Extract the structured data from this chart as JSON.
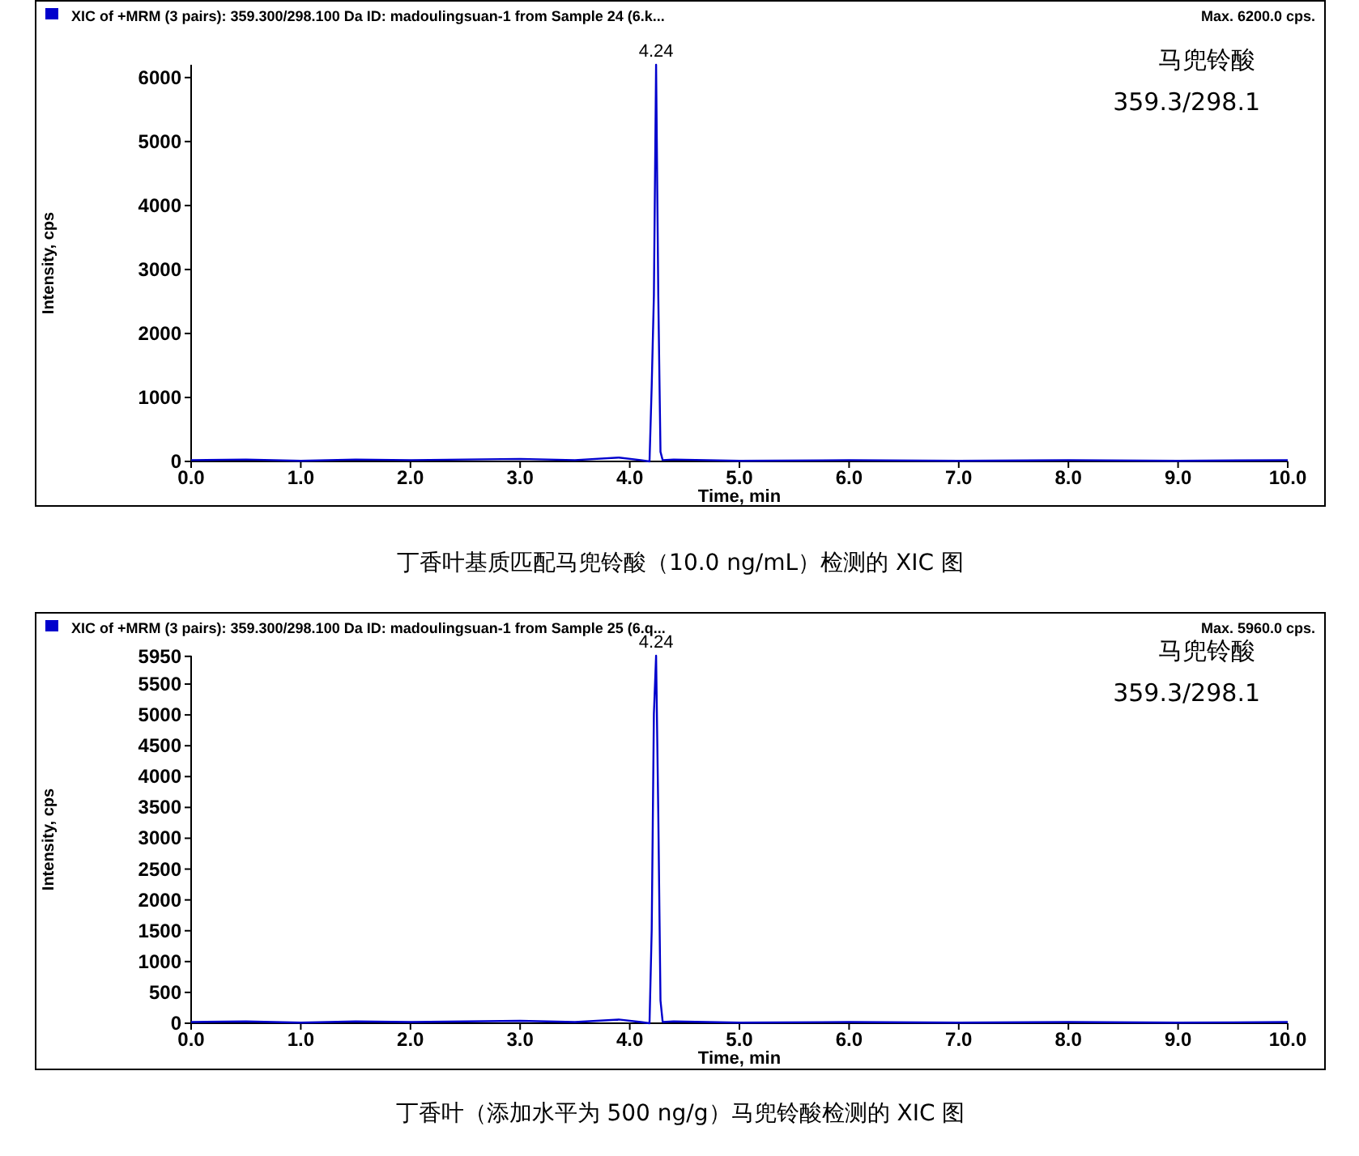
{
  "chart_data": [
    {
      "type": "line",
      "title": "XIC of +MRM (3 pairs): 359.300/298.100 Da ID: madoulingsuan-1 from Sample 24 (6.k...",
      "xlabel": "Time, min",
      "ylabel": "Intensity, cps",
      "xlim": [
        0,
        10
      ],
      "ylim": [
        0,
        6200
      ],
      "xticks": [
        {
          "value": 0,
          "label": "0.0"
        },
        {
          "value": 1,
          "label": "1.0"
        },
        {
          "value": 2,
          "label": "2.0"
        },
        {
          "value": 3,
          "label": "3.0"
        },
        {
          "value": 4,
          "label": "4.0"
        },
        {
          "value": 5,
          "label": "5.0"
        },
        {
          "value": 6,
          "label": "6.0"
        },
        {
          "value": 7,
          "label": "7.0"
        },
        {
          "value": 8,
          "label": "8.0"
        },
        {
          "value": 9,
          "label": "9.0"
        },
        {
          "value": 10,
          "label": "10.0"
        }
      ],
      "yticks": [
        0,
        1000,
        2000,
        3000,
        4000,
        5000,
        6000
      ],
      "marker": "none",
      "series": [
        {
          "color": "#0000cc",
          "x": [
            0,
            0.5,
            1,
            1.5,
            2,
            2.5,
            3,
            3.5,
            3.9,
            4.1,
            4.18,
            4.2,
            4.22,
            4.24,
            4.26,
            4.28,
            4.3,
            4.4,
            5,
            6,
            7,
            8,
            9,
            10
          ],
          "values": [
            20,
            30,
            10,
            30,
            20,
            30,
            40,
            20,
            60,
            20,
            0,
            1180,
            2590,
            6200,
            2590,
            150,
            20,
            30,
            10,
            20,
            10,
            20,
            10,
            20
          ]
        }
      ],
      "annotations": [
        {
          "text": "4.24",
          "x": 4.24,
          "y": 6200
        },
        "Max. 6200.0 cps.",
        "马兜铃酸",
        "359.3/298.1",
        "丁香叶基质匹配马兜铃酸（10.0 ng/mL）检测的 XIC 图"
      ]
    },
    {
      "type": "line",
      "title": "XIC of +MRM (3 pairs): 359.300/298.100 Da ID: madoulingsuan-1 from Sample 25 (6.q...",
      "xlabel": "Time, min",
      "ylabel": "Intensity, cps",
      "xlim": [
        0,
        10
      ],
      "ylim": [
        0,
        5960
      ],
      "xticks": [
        {
          "value": 0,
          "label": "0.0"
        },
        {
          "value": 1,
          "label": "1.0"
        },
        {
          "value": 2,
          "label": "2.0"
        },
        {
          "value": 3,
          "label": "3.0"
        },
        {
          "value": 4,
          "label": "4.0"
        },
        {
          "value": 5,
          "label": "5.0"
        },
        {
          "value": 6,
          "label": "6.0"
        },
        {
          "value": 7,
          "label": "7.0"
        },
        {
          "value": 8,
          "label": "8.0"
        },
        {
          "value": 9,
          "label": "9.0"
        },
        {
          "value": 10,
          "label": "10.0"
        }
      ],
      "yticks": [
        0,
        500,
        1000,
        1500,
        2000,
        2500,
        3000,
        3500,
        4000,
        4500,
        5000,
        5500,
        5950
      ],
      "marker": "none",
      "series": [
        {
          "color": "#0000cc",
          "x": [
            0,
            0.5,
            1,
            1.5,
            2,
            2.5,
            3,
            3.5,
            3.9,
            4.1,
            4.18,
            4.2,
            4.22,
            4.24,
            4.26,
            4.28,
            4.3,
            4.4,
            5,
            6,
            7,
            8,
            9,
            10
          ],
          "values": [
            20,
            30,
            10,
            30,
            20,
            30,
            40,
            20,
            60,
            20,
            0,
            1510,
            5020,
            5960,
            3410,
            370,
            20,
            30,
            10,
            20,
            10,
            20,
            10,
            20
          ]
        }
      ],
      "annotations": [
        {
          "text": "4.24",
          "x": 4.24,
          "y": 5960
        },
        "Max. 5960.0 cps.",
        "马兜铃酸",
        "359.3/298.1",
        "丁香叶（添加水平为 500 ng/g）马兜铃酸检测的 XIC 图"
      ]
    }
  ]
}
